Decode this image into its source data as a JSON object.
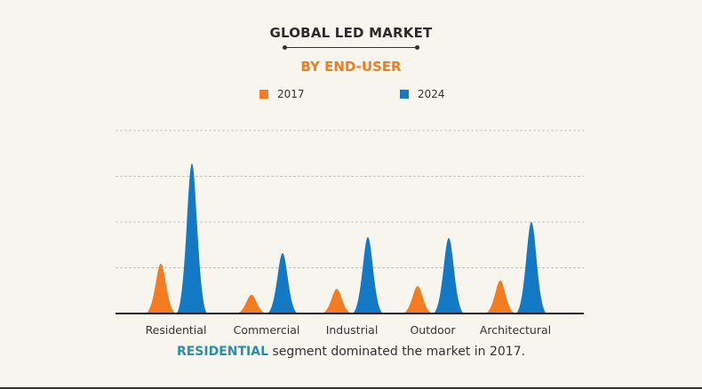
{
  "header": {
    "title": "GLOBAL LED MARKET",
    "subtitle": "BY END-USER"
  },
  "caption": {
    "highlight": "RESIDENTIAL",
    "text": " segment dominated the market in 2017."
  },
  "colors": {
    "2017": "#f47c20",
    "2024": "#1479c4",
    "highlight": "#2a8fa6"
  },
  "chart_data": {
    "type": "area",
    "categories": [
      "Residential",
      "Commercial",
      "Industrial",
      "Outdoor",
      "Architectural"
    ],
    "series": [
      {
        "name": "2017",
        "values": [
          1.09,
          0.41,
          0.54,
          0.6,
          0.72
        ]
      },
      {
        "name": "2024",
        "values": [
          3.28,
          1.32,
          1.67,
          1.65,
          2.0
        ]
      }
    ],
    "ylim": [
      0,
      4
    ],
    "grid": true,
    "legend": "top",
    "title": "GLOBAL LED MARKET",
    "subtitle": "BY END-USER"
  }
}
